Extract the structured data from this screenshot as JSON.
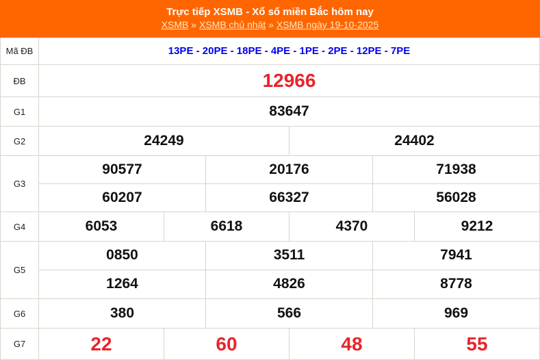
{
  "header": {
    "title": "Trực tiếp XSMB - Xổ số miền Bắc hôm nay",
    "breadcrumb": [
      "XSMB",
      "XSMB chủ nhật",
      "XSMB ngày 19-10-2025"
    ],
    "separator": "»"
  },
  "colors": {
    "header_bg": "#ff6600",
    "special": "#e8242b",
    "code": "#0000ee"
  },
  "rows": {
    "ma_db": {
      "label": "Mã ĐB",
      "value": "13PE - 20PE - 18PE - 4PE - 1PE - 2PE - 12PE - 7PE"
    },
    "db": {
      "label": "ĐB",
      "values": [
        "12966"
      ]
    },
    "g1": {
      "label": "G1",
      "values": [
        "83647"
      ]
    },
    "g2": {
      "label": "G2",
      "values": [
        "24249",
        "24402"
      ]
    },
    "g3": {
      "label": "G3",
      "values": [
        "90577",
        "20176",
        "71938",
        "60207",
        "66327",
        "56028"
      ]
    },
    "g4": {
      "label": "G4",
      "values": [
        "6053",
        "6618",
        "4370",
        "9212"
      ]
    },
    "g5": {
      "label": "G5",
      "values": [
        "0850",
        "3511",
        "7941",
        "1264",
        "4826",
        "8778"
      ]
    },
    "g6": {
      "label": "G6",
      "values": [
        "380",
        "566",
        "969"
      ]
    },
    "g7": {
      "label": "G7",
      "values": [
        "22",
        "60",
        "48",
        "55"
      ]
    }
  }
}
